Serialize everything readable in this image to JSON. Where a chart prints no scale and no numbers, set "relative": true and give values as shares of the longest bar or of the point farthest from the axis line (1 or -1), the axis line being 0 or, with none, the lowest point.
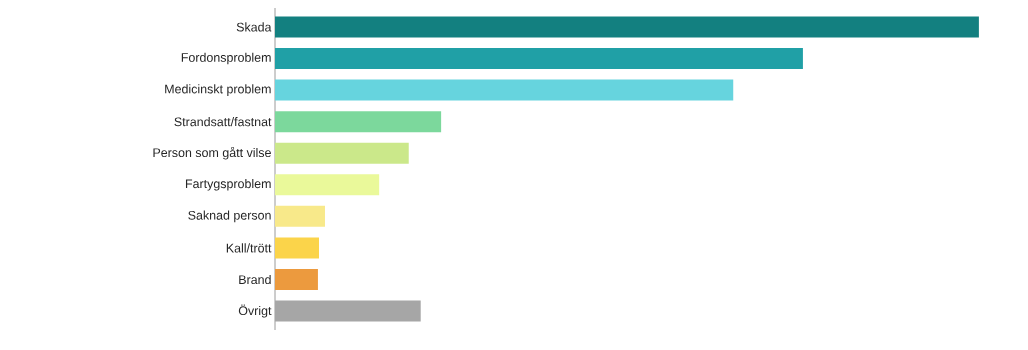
{
  "chart_data": {
    "type": "bar",
    "orientation": "horizontal",
    "relative": true,
    "categories": [
      "Skada",
      "Fordonsproblem",
      "Medicinskt problem",
      "Strandsatt/fastnat",
      "Person som gått vilse",
      "Fartygsproblem",
      "Saknad person",
      "Kall/trött",
      "Brand",
      "Övrigt"
    ],
    "values": [
      1,
      0.75,
      0.651,
      0.236,
      0.19,
      0.148,
      0.071,
      0.0625,
      0.061,
      0.207
    ],
    "colors": [
      "#138080",
      "#20a0a6",
      "#66d4de",
      "#7cd89c",
      "#cbe88a",
      "#eaf99a",
      "#f8e98a",
      "#fbd44a",
      "#ec9a3e",
      "#a6a6a6"
    ]
  }
}
